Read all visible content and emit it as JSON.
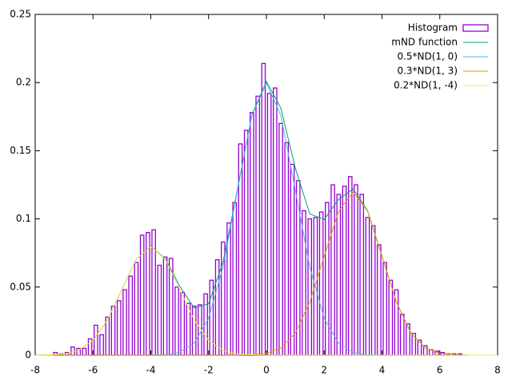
{
  "chart_data": {
    "type": "histogram",
    "xlim": [
      -8,
      8
    ],
    "ylim": [
      0,
      0.25
    ],
    "xticks": [
      -8,
      -6,
      -4,
      -2,
      0,
      2,
      4,
      6,
      8
    ],
    "yticks": [
      0,
      0.05,
      0.1,
      0.15,
      0.2,
      0.25
    ],
    "legend": "top right",
    "histogram": {
      "name": "Histogram",
      "color": "#9400d3",
      "bins": [
        -7.4,
        -7.2,
        -7,
        -6.8,
        -6.6,
        -6.4,
        -6.2,
        -6,
        -5.8,
        -5.6,
        -5.4,
        -5.2,
        -5,
        -4.8,
        -4.6,
        -4.4,
        -4.2,
        -4,
        -3.8,
        -3.6,
        -3.4,
        -3.2,
        -3,
        -2.8,
        -2.6,
        -2.4,
        -2.2,
        -2,
        -1.8,
        -1.6,
        -1.4,
        -1.2,
        -1,
        -0.8,
        -0.6,
        -0.4,
        -0.2,
        0,
        0.2,
        0.4,
        0.6,
        0.8,
        1,
        1.2,
        1.4,
        1.6,
        1.8,
        2,
        2.2,
        2.4,
        2.6,
        2.8,
        3,
        3.2,
        3.4,
        3.6,
        3.8,
        4,
        4.2,
        4.4,
        4.6,
        4.8,
        5,
        5.2,
        5.4,
        5.6,
        5.8,
        6,
        6.2,
        6.4,
        6.6,
        6.8
      ],
      "values": [
        0.002,
        0.001,
        0.002,
        0.006,
        0.005,
        0.005,
        0.012,
        0.022,
        0.015,
        0.028,
        0.036,
        0.04,
        0.048,
        0.058,
        0.068,
        0.088,
        0.09,
        0.092,
        0.066,
        0.072,
        0.071,
        0.05,
        0.046,
        0.038,
        0.036,
        0.037,
        0.045,
        0.055,
        0.07,
        0.083,
        0.097,
        0.112,
        0.155,
        0.165,
        0.178,
        0.19,
        0.214,
        0.192,
        0.196,
        0.17,
        0.156,
        0.14,
        0.128,
        0.106,
        0.1,
        0.101,
        0.105,
        0.112,
        0.125,
        0.118,
        0.124,
        0.131,
        0.125,
        0.118,
        0.101,
        0.095,
        0.081,
        0.068,
        0.055,
        0.048,
        0.03,
        0.023,
        0.016,
        0.011,
        0.007,
        0.004,
        0.003,
        0.002,
        0.001,
        0.001,
        0.001
      ]
    },
    "x": [
      -8,
      -7.5,
      -7,
      -6.5,
      -6,
      -5.5,
      -5,
      -4.5,
      -4,
      -3.5,
      -3,
      -2.5,
      -2,
      -1.5,
      -1,
      -0.5,
      0,
      0.5,
      1,
      1.5,
      2,
      2.5,
      3,
      3.5,
      4,
      4.5,
      5,
      5.5,
      6,
      6.5,
      7,
      7.5,
      8
    ],
    "series": [
      {
        "name": "mND function",
        "color": "#009e73",
        "values": [
          0,
          0.0002,
          0.0009,
          0.0035,
          0.0108,
          0.0259,
          0.0484,
          0.0704,
          0.0799,
          0.0708,
          0.0506,
          0.0347,
          0.0378,
          0.0683,
          0.1219,
          0.1765,
          0.2008,
          0.1813,
          0.1372,
          0.1037,
          0.0996,
          0.1144,
          0.1219,
          0.106,
          0.0727,
          0.0389,
          0.0162,
          0.0053,
          0.0013,
          0.0003,
          0,
          0,
          0
        ]
      },
      {
        "name": "0.5*ND(1, 0)",
        "color": "#56b4e9",
        "values": [
          0,
          0,
          0,
          0,
          0,
          0,
          0,
          0,
          0.0001,
          0.0004,
          0.0022,
          0.0088,
          0.027,
          0.0648,
          0.121,
          0.176,
          0.1995,
          0.176,
          0.121,
          0.0648,
          0.027,
          0.0088,
          0.0022,
          0.0004,
          0.0001,
          0,
          0,
          0,
          0,
          0,
          0,
          0,
          0
        ]
      },
      {
        "name": "0.3*ND(1, 3)",
        "color": "#e69f00",
        "values": [
          0,
          0,
          0,
          0,
          0,
          0,
          0,
          0,
          0,
          0,
          0,
          0,
          0,
          0,
          0,
          0.0003,
          0.0013,
          0.0053,
          0.0162,
          0.0389,
          0.0726,
          0.1056,
          0.1197,
          0.1056,
          0.0726,
          0.0389,
          0.0162,
          0.0053,
          0.0013,
          0.0003,
          0,
          0,
          0
        ]
      },
      {
        "name": "0.2*ND(1, -4)",
        "color": "#f0e442",
        "values": [
          0,
          0.0002,
          0.0009,
          0.0035,
          0.0108,
          0.0259,
          0.0484,
          0.0704,
          0.0798,
          0.0704,
          0.0484,
          0.0259,
          0.0108,
          0.0035,
          0.0009,
          0.0002,
          0,
          0,
          0,
          0,
          0,
          0,
          0,
          0,
          0,
          0,
          0,
          0,
          0,
          0,
          0,
          0,
          0
        ]
      }
    ]
  }
}
